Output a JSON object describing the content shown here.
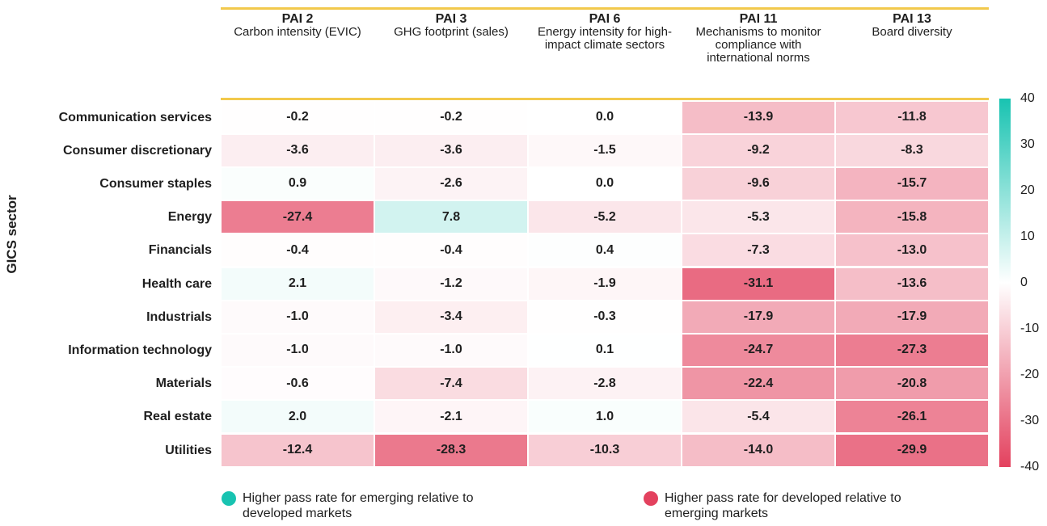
{
  "chart_data": {
    "type": "heatmap",
    "ylabel": "GICS sector",
    "columns": [
      {
        "code": "PAI 2",
        "description": "Carbon intensity (EVIC)"
      },
      {
        "code": "PAI 3",
        "description": "GHG footprint (sales)"
      },
      {
        "code": "PAI 6",
        "description": "Energy intensity for high-impact climate sectors"
      },
      {
        "code": "PAI 11",
        "description": "Mechanisms to monitor compliance with international norms"
      },
      {
        "code": "PAI 13",
        "description": "Board diversity"
      }
    ],
    "categories": [
      "Communication services",
      "Consumer discretionary",
      "Consumer staples",
      "Energy",
      "Financials",
      "Health care",
      "Industrials",
      "Information technology",
      "Materials",
      "Real estate",
      "Utilities"
    ],
    "values": [
      [
        -0.2,
        -0.2,
        0.0,
        -13.9,
        -11.8
      ],
      [
        -3.6,
        -3.6,
        -1.5,
        -9.2,
        -8.3
      ],
      [
        0.9,
        -2.6,
        0.0,
        -9.6,
        -15.7
      ],
      [
        -27.4,
        7.8,
        -5.2,
        -5.3,
        -15.8
      ],
      [
        -0.4,
        -0.4,
        0.4,
        -7.3,
        -13.0
      ],
      [
        2.1,
        -1.2,
        -1.9,
        -31.1,
        -13.6
      ],
      [
        -1.0,
        -3.4,
        -0.3,
        -17.9,
        -17.9
      ],
      [
        -1.0,
        -1.0,
        0.1,
        -24.7,
        -27.3
      ],
      [
        -0.6,
        -7.4,
        -2.8,
        -22.4,
        -20.8
      ],
      [
        2.0,
        -2.1,
        1.0,
        -5.4,
        -26.1
      ],
      [
        -12.4,
        -28.3,
        -10.3,
        -14.0,
        -29.9
      ]
    ],
    "value_labels": [
      [
        "-0.2",
        "-0.2",
        "0.0",
        "-13.9",
        "-11.8"
      ],
      [
        "-3.6",
        "-3.6",
        "-1.5",
        "-9.2",
        "-8.3"
      ],
      [
        "0.9",
        "-2.6",
        "0.0",
        "-9.6",
        "-15.7"
      ],
      [
        "-27.4",
        "7.8",
        "-5.2",
        "-5.3",
        "-15.8"
      ],
      [
        "-0.4",
        "-0.4",
        "0.4",
        "-7.3",
        "-13.0"
      ],
      [
        "2.1",
        "-1.2",
        "-1.9",
        "-31.1",
        "-13.6"
      ],
      [
        "-1.0",
        "-3.4",
        "-0.3",
        "-17.9",
        "-17.9"
      ],
      [
        "-1.0",
        "-1.0",
        "0.1",
        "-24.7",
        "-27.3"
      ],
      [
        "-0.6",
        "-7.4",
        "-2.8",
        "-22.4",
        "-20.8"
      ],
      [
        "2.0",
        "-2.1",
        "1.0",
        "-5.4",
        "-26.1"
      ],
      [
        "-12.4",
        "-28.3",
        "-10.3",
        "-14.0",
        "-29.9"
      ]
    ],
    "clim": [
      -40,
      40
    ],
    "cticks": [
      40,
      30,
      20,
      10,
      0,
      -10,
      -20,
      -30,
      -40
    ],
    "colors": {
      "min": "#e3415e",
      "mid": "#ffffff",
      "max": "#18c3b1"
    },
    "legend": [
      {
        "label": "Higher pass rate for emerging relative to developed markets",
        "color": "#18c3b1"
      },
      {
        "label": "Higher pass rate for developed relative to emerging markets",
        "color": "#e3415e"
      }
    ]
  }
}
